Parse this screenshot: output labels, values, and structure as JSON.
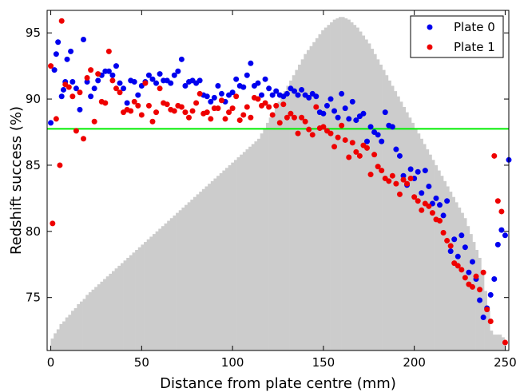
{
  "chart_data": {
    "type": "scatter",
    "xlabel": "Distance from plate centre (mm)",
    "ylabel": "Redshift success (%)",
    "xlim": [
      -2,
      252
    ],
    "ylim": [
      71,
      96.7
    ],
    "x_ticks": [
      0,
      50,
      100,
      150,
      200,
      250
    ],
    "y_ticks": [
      75,
      80,
      85,
      90,
      95
    ],
    "grid": false,
    "legend_position": "top-right",
    "reference_line": {
      "y": 87.75,
      "color": "#00ee00"
    },
    "histogram": {
      "color": "#cccccc",
      "bin_width": 1.6,
      "start": 0,
      "values": [
        71.9,
        72.3,
        72.6,
        73.0,
        73.2,
        73.5,
        73.7,
        74.0,
        74.2,
        74.5,
        74.7,
        74.9,
        75.2,
        75.4,
        75.6,
        75.8,
        76.0,
        76.2,
        76.4,
        76.6,
        76.8,
        77.0,
        77.2,
        77.4,
        77.6,
        77.8,
        78.0,
        78.2,
        78.4,
        78.6,
        78.8,
        79.0,
        79.2,
        79.4,
        79.6,
        79.8,
        80.0,
        80.2,
        80.4,
        80.6,
        80.8,
        81.0,
        81.2,
        81.4,
        81.6,
        81.8,
        82.0,
        82.2,
        82.4,
        82.6,
        82.8,
        83.0,
        83.2,
        83.4,
        83.6,
        83.8,
        84.0,
        84.2,
        84.4,
        84.6,
        84.8,
        85.0,
        85.2,
        85.4,
        85.6,
        85.8,
        86.0,
        86.2,
        86.4,
        86.6,
        86.8,
        87.0,
        87.4,
        87.8,
        88.2,
        88.6,
        89.0,
        89.4,
        89.8,
        90.2,
        90.6,
        91.0,
        91.4,
        91.8,
        92.2,
        92.6,
        93.0,
        93.4,
        93.7,
        94.0,
        94.3,
        94.6,
        94.9,
        95.2,
        95.4,
        95.6,
        95.8,
        96.0,
        96.1,
        96.2,
        96.2,
        96.1,
        96.0,
        95.8,
        95.6,
        95.4,
        95.1,
        94.8,
        94.5,
        94.2,
        93.8,
        93.4,
        93.0,
        92.6,
        92.2,
        91.8,
        91.4,
        91.0,
        90.6,
        90.2,
        89.8,
        89.4,
        89.0,
        88.6,
        88.2,
        87.8,
        87.4,
        87.0,
        86.6,
        86.2,
        85.8,
        85.4,
        85.0,
        84.6,
        84.2,
        83.8,
        83.4,
        83.0,
        82.6,
        82.2,
        81.8,
        81.4,
        81.0,
        80.4,
        79.8,
        79.2,
        78.6,
        78.0,
        76.8,
        75.5,
        74.0,
        72.5,
        72.2,
        72.2,
        72.2,
        72.0
      ]
    },
    "series": [
      {
        "name": "Plate 0",
        "color": "#0000ee",
        "points": [
          [
            0,
            88.2
          ],
          [
            2,
            92.2
          ],
          [
            3,
            93.4
          ],
          [
            4,
            94.3
          ],
          [
            6,
            90.2
          ],
          [
            7,
            90.7
          ],
          [
            8,
            91.3
          ],
          [
            9,
            93.0
          ],
          [
            11,
            93.6
          ],
          [
            12,
            91.3
          ],
          [
            14,
            90.8
          ],
          [
            16,
            89.2
          ],
          [
            18,
            94.5
          ],
          [
            20,
            91.3
          ],
          [
            22,
            90.2
          ],
          [
            24,
            90.8
          ],
          [
            26,
            91.4
          ],
          [
            28,
            91.8
          ],
          [
            30,
            92.1
          ],
          [
            32,
            92.1
          ],
          [
            34,
            91.8
          ],
          [
            36,
            92.5
          ],
          [
            38,
            91.2
          ],
          [
            40,
            90.8
          ],
          [
            42,
            89.7
          ],
          [
            44,
            91.4
          ],
          [
            46,
            91.3
          ],
          [
            48,
            90.3
          ],
          [
            50,
            91.0
          ],
          [
            52,
            91.3
          ],
          [
            54,
            91.8
          ],
          [
            56,
            91.5
          ],
          [
            58,
            91.2
          ],
          [
            60,
            91.9
          ],
          [
            62,
            91.4
          ],
          [
            64,
            91.4
          ],
          [
            66,
            91.2
          ],
          [
            68,
            91.8
          ],
          [
            70,
            92.1
          ],
          [
            72,
            93.0
          ],
          [
            74,
            91.0
          ],
          [
            76,
            91.3
          ],
          [
            78,
            91.4
          ],
          [
            80,
            91.2
          ],
          [
            82,
            91.4
          ],
          [
            84,
            90.3
          ],
          [
            86,
            90.2
          ],
          [
            88,
            89.8
          ],
          [
            90,
            90.1
          ],
          [
            92,
            91.0
          ],
          [
            94,
            90.4
          ],
          [
            96,
            89.8
          ],
          [
            98,
            90.3
          ],
          [
            100,
            90.5
          ],
          [
            102,
            91.5
          ],
          [
            104,
            91.0
          ],
          [
            106,
            90.9
          ],
          [
            108,
            91.8
          ],
          [
            110,
            92.7
          ],
          [
            112,
            91.0
          ],
          [
            114,
            91.2
          ],
          [
            116,
            90.3
          ],
          [
            118,
            91.5
          ],
          [
            120,
            90.8
          ],
          [
            122,
            90.3
          ],
          [
            124,
            90.6
          ],
          [
            126,
            90.3
          ],
          [
            128,
            90.2
          ],
          [
            130,
            90.4
          ],
          [
            132,
            90.8
          ],
          [
            134,
            90.6
          ],
          [
            136,
            90.3
          ],
          [
            138,
            90.7
          ],
          [
            140,
            90.3
          ],
          [
            142,
            90.1
          ],
          [
            144,
            90.4
          ],
          [
            146,
            90.2
          ],
          [
            148,
            89.0
          ],
          [
            150,
            88.9
          ],
          [
            152,
            89.5
          ],
          [
            154,
            90.0
          ],
          [
            156,
            89.1
          ],
          [
            158,
            88.6
          ],
          [
            160,
            90.4
          ],
          [
            162,
            89.3
          ],
          [
            164,
            88.5
          ],
          [
            166,
            89.8
          ],
          [
            168,
            88.4
          ],
          [
            170,
            88.7
          ],
          [
            172,
            88.9
          ],
          [
            174,
            86.8
          ],
          [
            176,
            87.9
          ],
          [
            178,
            87.5
          ],
          [
            180,
            87.3
          ],
          [
            182,
            86.8
          ],
          [
            184,
            89.0
          ],
          [
            186,
            88.0
          ],
          [
            188,
            87.9
          ],
          [
            190,
            86.2
          ],
          [
            192,
            85.7
          ],
          [
            194,
            84.2
          ],
          [
            196,
            83.5
          ],
          [
            198,
            84.7
          ],
          [
            200,
            84.0
          ],
          [
            202,
            84.5
          ],
          [
            204,
            82.9
          ],
          [
            206,
            84.6
          ],
          [
            208,
            83.4
          ],
          [
            210,
            82.1
          ],
          [
            212,
            82.5
          ],
          [
            214,
            82.0
          ],
          [
            216,
            81.2
          ],
          [
            218,
            82.3
          ],
          [
            220,
            78.5
          ],
          [
            222,
            79.4
          ],
          [
            224,
            78.1
          ],
          [
            226,
            79.7
          ],
          [
            228,
            78.8
          ],
          [
            230,
            76.9
          ],
          [
            232,
            77.7
          ],
          [
            234,
            76.4
          ],
          [
            236,
            74.8
          ],
          [
            238,
            73.5
          ],
          [
            240,
            74.2
          ],
          [
            242,
            75.2
          ],
          [
            244,
            76.4
          ],
          [
            246,
            79.0
          ],
          [
            248,
            80.1
          ],
          [
            250,
            79.7
          ],
          [
            252,
            85.4
          ]
        ]
      },
      {
        "name": "Plate 1",
        "color": "#ee0000",
        "points": [
          [
            0,
            92.5
          ],
          [
            1,
            80.6
          ],
          [
            3,
            88.5
          ],
          [
            5,
            85.0
          ],
          [
            6,
            95.9
          ],
          [
            8,
            91.1
          ],
          [
            10,
            90.9
          ],
          [
            12,
            90.2
          ],
          [
            14,
            87.6
          ],
          [
            16,
            90.5
          ],
          [
            18,
            87.0
          ],
          [
            20,
            91.6
          ],
          [
            22,
            92.2
          ],
          [
            24,
            88.3
          ],
          [
            26,
            91.9
          ],
          [
            28,
            89.8
          ],
          [
            30,
            89.7
          ],
          [
            32,
            93.6
          ],
          [
            34,
            91.4
          ],
          [
            36,
            90.8
          ],
          [
            38,
            90.5
          ],
          [
            40,
            89.0
          ],
          [
            42,
            89.2
          ],
          [
            44,
            89.1
          ],
          [
            46,
            89.8
          ],
          [
            48,
            89.5
          ],
          [
            50,
            88.8
          ],
          [
            52,
            91.2
          ],
          [
            54,
            89.5
          ],
          [
            56,
            88.3
          ],
          [
            58,
            89.0
          ],
          [
            60,
            90.8
          ],
          [
            62,
            89.7
          ],
          [
            64,
            89.6
          ],
          [
            66,
            89.2
          ],
          [
            68,
            89.1
          ],
          [
            70,
            89.5
          ],
          [
            72,
            89.4
          ],
          [
            74,
            89.0
          ],
          [
            76,
            88.6
          ],
          [
            78,
            89.1
          ],
          [
            80,
            89.7
          ],
          [
            82,
            90.4
          ],
          [
            84,
            88.9
          ],
          [
            86,
            89.0
          ],
          [
            88,
            88.5
          ],
          [
            90,
            89.3
          ],
          [
            92,
            89.3
          ],
          [
            94,
            89.9
          ],
          [
            96,
            88.5
          ],
          [
            98,
            89.0
          ],
          [
            100,
            89.3
          ],
          [
            102,
            90.2
          ],
          [
            104,
            88.4
          ],
          [
            106,
            88.8
          ],
          [
            108,
            89.4
          ],
          [
            110,
            88.6
          ],
          [
            112,
            90.1
          ],
          [
            114,
            90.0
          ],
          [
            116,
            89.5
          ],
          [
            118,
            89.7
          ],
          [
            120,
            89.4
          ],
          [
            122,
            88.8
          ],
          [
            124,
            89.5
          ],
          [
            126,
            88.2
          ],
          [
            128,
            89.6
          ],
          [
            130,
            88.6
          ],
          [
            132,
            88.9
          ],
          [
            134,
            88.6
          ],
          [
            136,
            87.4
          ],
          [
            138,
            88.6
          ],
          [
            140,
            88.3
          ],
          [
            142,
            87.7
          ],
          [
            144,
            87.3
          ],
          [
            146,
            89.4
          ],
          [
            148,
            87.8
          ],
          [
            150,
            87.9
          ],
          [
            152,
            87.6
          ],
          [
            154,
            87.4
          ],
          [
            156,
            86.4
          ],
          [
            158,
            87.1
          ],
          [
            160,
            88.0
          ],
          [
            162,
            86.9
          ],
          [
            164,
            85.6
          ],
          [
            166,
            86.7
          ],
          [
            168,
            86.0
          ],
          [
            170,
            85.7
          ],
          [
            172,
            86.5
          ],
          [
            174,
            86.3
          ],
          [
            176,
            84.3
          ],
          [
            178,
            85.8
          ],
          [
            180,
            84.9
          ],
          [
            182,
            84.6
          ],
          [
            184,
            84.0
          ],
          [
            186,
            83.8
          ],
          [
            188,
            84.2
          ],
          [
            190,
            83.6
          ],
          [
            192,
            82.8
          ],
          [
            194,
            83.9
          ],
          [
            196,
            83.6
          ],
          [
            198,
            84.0
          ],
          [
            200,
            82.6
          ],
          [
            202,
            82.3
          ],
          [
            204,
            81.6
          ],
          [
            206,
            82.1
          ],
          [
            208,
            81.9
          ],
          [
            210,
            81.4
          ],
          [
            212,
            80.9
          ],
          [
            214,
            80.8
          ],
          [
            216,
            79.9
          ],
          [
            218,
            79.3
          ],
          [
            220,
            78.9
          ],
          [
            222,
            77.6
          ],
          [
            224,
            77.4
          ],
          [
            226,
            77.1
          ],
          [
            228,
            76.5
          ],
          [
            230,
            76.0
          ],
          [
            232,
            75.8
          ],
          [
            234,
            76.6
          ],
          [
            236,
            75.6
          ],
          [
            238,
            76.9
          ],
          [
            240,
            74.1
          ],
          [
            242,
            73.2
          ],
          [
            244,
            85.7
          ],
          [
            246,
            82.3
          ],
          [
            248,
            81.5
          ],
          [
            250,
            71.6
          ]
        ]
      }
    ]
  }
}
